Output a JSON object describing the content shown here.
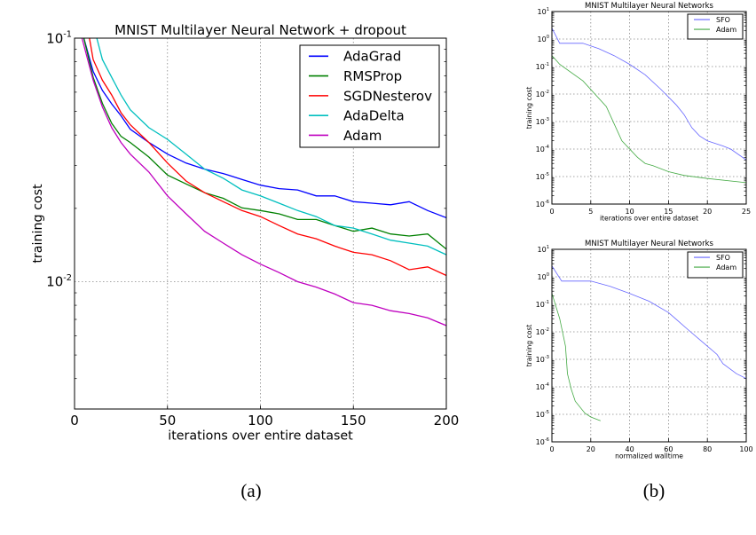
{
  "captions": {
    "a": "(a)",
    "b": "(b)"
  },
  "chart_data": [
    {
      "type": "line",
      "title": "MNIST Multilayer Neural Network + dropout",
      "xlabel": "iterations over entire dataset",
      "ylabel": "training cost",
      "xlim": [
        0,
        200
      ],
      "ylim": [
        0.003,
        0.1
      ],
      "yscale": "log",
      "xticks": [
        "0",
        "50",
        "100",
        "150",
        "200"
      ],
      "yticks": [
        {
          "base": "10",
          "exp": "-1",
          "value": 0.1
        },
        {
          "base": "10",
          "exp": "-2",
          "value": 0.01
        }
      ],
      "grid": true,
      "legend": "top-right",
      "series": [
        {
          "name": "AdaGrad",
          "color": "#0000ff",
          "x": [
            5,
            10,
            15,
            20,
            25,
            30,
            40,
            50,
            60,
            70,
            80,
            90,
            100,
            110,
            120,
            130,
            140,
            150,
            160,
            170,
            180,
            190,
            200
          ],
          "y": [
            0.1,
            0.073,
            0.061,
            0.0537,
            0.048,
            0.0423,
            0.0373,
            0.0334,
            0.0307,
            0.029,
            0.0278,
            0.0263,
            0.0249,
            0.0241,
            0.0238,
            0.0225,
            0.0225,
            0.0213,
            0.021,
            0.0207,
            0.0213,
            0.0196,
            0.0183
          ]
        },
        {
          "name": "RMSProp",
          "color": "#008000",
          "x": [
            5,
            10,
            15,
            20,
            25,
            30,
            40,
            50,
            60,
            70,
            80,
            90,
            100,
            110,
            120,
            130,
            140,
            150,
            160,
            170,
            180,
            190,
            200
          ],
          "y": [
            0.1,
            0.069,
            0.054,
            0.0447,
            0.0395,
            0.0373,
            0.0325,
            0.0274,
            0.0252,
            0.0232,
            0.022,
            0.0201,
            0.0196,
            0.019,
            0.018,
            0.018,
            0.017,
            0.0161,
            0.0166,
            0.0157,
            0.0154,
            0.0157,
            0.0136
          ]
        },
        {
          "name": "SGDNesterov",
          "color": "#ff0000",
          "x": [
            8,
            10,
            15,
            20,
            25,
            30,
            40,
            50,
            60,
            70,
            80,
            90,
            100,
            110,
            120,
            130,
            140,
            150,
            160,
            170,
            180,
            190,
            200
          ],
          "y": [
            0.1,
            0.0817,
            0.0672,
            0.0584,
            0.0494,
            0.0441,
            0.0373,
            0.0307,
            0.0259,
            0.0232,
            0.0213,
            0.0196,
            0.0185,
            0.017,
            0.0157,
            0.015,
            0.014,
            0.0132,
            0.0129,
            0.0122,
            0.0112,
            0.0115,
            0.0106
          ]
        },
        {
          "name": "AdaDelta",
          "color": "#00bfbf",
          "x": [
            12,
            15,
            20,
            25,
            30,
            40,
            50,
            60,
            70,
            80,
            90,
            100,
            110,
            120,
            130,
            140,
            150,
            160,
            170,
            180,
            190,
            200
          ],
          "y": [
            0.1,
            0.0817,
            0.069,
            0.0584,
            0.0508,
            0.0429,
            0.0384,
            0.0334,
            0.029,
            0.0266,
            0.0238,
            0.0225,
            0.021,
            0.0196,
            0.0185,
            0.017,
            0.0166,
            0.0157,
            0.0148,
            0.0144,
            0.014,
            0.0129
          ]
        },
        {
          "name": "Adam",
          "color": "#bf00bf",
          "x": [
            4,
            10,
            15,
            20,
            25,
            30,
            40,
            50,
            60,
            70,
            80,
            90,
            100,
            110,
            120,
            130,
            140,
            150,
            160,
            170,
            180,
            190,
            200
          ],
          "y": [
            0.1,
            0.0672,
            0.0522,
            0.0429,
            0.0373,
            0.0334,
            0.0282,
            0.0225,
            0.019,
            0.0161,
            0.0144,
            0.0129,
            0.0118,
            0.0109,
            0.01,
            0.0095,
            0.0089,
            0.0082,
            0.008,
            0.0076,
            0.0074,
            0.0071,
            0.0066
          ]
        }
      ]
    },
    {
      "type": "line",
      "title": "MNIST Multilayer Neural Networks",
      "xlabel": "iterations over entire dataset",
      "ylabel": "training cost",
      "xlim": [
        0,
        25
      ],
      "ylim": [
        1e-06,
        10
      ],
      "yscale": "log",
      "xticks": [
        "0",
        "5",
        "10",
        "15",
        "20",
        "25"
      ],
      "yticks": [
        {
          "base": "10",
          "exp": "1",
          "value": 10
        },
        {
          "base": "10",
          "exp": "0",
          "value": 1
        },
        {
          "base": "10",
          "exp": "-1",
          "value": 0.1
        },
        {
          "base": "10",
          "exp": "-2",
          "value": 0.01
        },
        {
          "base": "10",
          "exp": "-3",
          "value": 0.001
        },
        {
          "base": "10",
          "exp": "-4",
          "value": 0.0001
        },
        {
          "base": "10",
          "exp": "-5",
          "value": 1e-05
        },
        {
          "base": "10",
          "exp": "-6",
          "value": 1e-06
        }
      ],
      "grid": true,
      "legend": "top-right",
      "series": [
        {
          "name": "SFO",
          "color": "#6666ff",
          "x": [
            0,
            1,
            4,
            6,
            8,
            10,
            12,
            14,
            16,
            17,
            18,
            19,
            20,
            22,
            23,
            25
          ],
          "y": [
            2.5,
            0.7,
            0.7,
            0.45,
            0.25,
            0.12,
            0.05,
            0.015,
            0.004,
            0.0018,
            0.0006,
            0.0003,
            0.0002,
            0.00013,
            0.0001,
            4e-05
          ]
        },
        {
          "name": "Adam",
          "color": "#44aa44",
          "x": [
            0,
            1,
            4,
            7,
            9,
            11,
            12,
            13,
            15,
            17,
            20,
            25
          ],
          "y": [
            0.25,
            0.12,
            0.03,
            0.0035,
            0.0002,
            5e-05,
            3e-05,
            2.5e-05,
            1.5e-05,
            1.1e-05,
            8.5e-06,
            6e-06
          ]
        }
      ]
    },
    {
      "type": "line",
      "title": "MNIST Multilayer Neural Networks",
      "xlabel": "normalized walltime",
      "ylabel": "training cost",
      "xlim": [
        0,
        100
      ],
      "ylim": [
        1e-06,
        10
      ],
      "yscale": "log",
      "xticks": [
        "0",
        "20",
        "40",
        "60",
        "80",
        "100"
      ],
      "yticks": [
        {
          "base": "10",
          "exp": "1",
          "value": 10
        },
        {
          "base": "10",
          "exp": "0",
          "value": 1
        },
        {
          "base": "10",
          "exp": "-1",
          "value": 0.1
        },
        {
          "base": "10",
          "exp": "-2",
          "value": 0.01
        },
        {
          "base": "10",
          "exp": "-3",
          "value": 0.001
        },
        {
          "base": "10",
          "exp": "-4",
          "value": 0.0001
        },
        {
          "base": "10",
          "exp": "-5",
          "value": 1e-05
        },
        {
          "base": "10",
          "exp": "-6",
          "value": 1e-06
        }
      ],
      "grid": true,
      "legend": "top-right",
      "series": [
        {
          "name": "SFO",
          "color": "#6666ff",
          "x": [
            0,
            5,
            20,
            30,
            40,
            50,
            60,
            70,
            80,
            85,
            88,
            95,
            100
          ],
          "y": [
            2.5,
            0.7,
            0.7,
            0.45,
            0.25,
            0.13,
            0.05,
            0.012,
            0.003,
            0.0015,
            0.0007,
            0.0003,
            0.0002
          ]
        },
        {
          "name": "Adam",
          "color": "#44aa44",
          "x": [
            0,
            4,
            7,
            8,
            10,
            12,
            17,
            20,
            25
          ],
          "y": [
            0.25,
            0.03,
            0.003,
            0.0003,
            8e-05,
            3e-05,
            1.1e-05,
            8e-06,
            5.8e-06
          ]
        }
      ]
    }
  ]
}
